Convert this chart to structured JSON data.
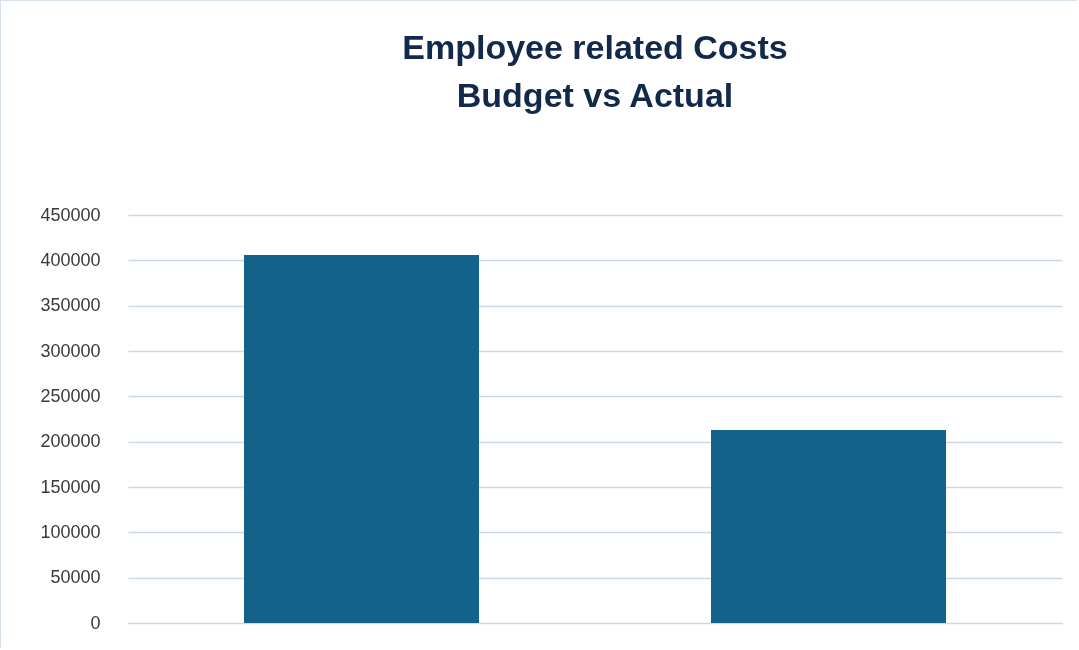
{
  "chart_data": {
    "type": "bar",
    "title": "Employee related Costs\nBudget vs Actual",
    "categories": [
      null,
      null
    ],
    "values": [
      406000,
      213000
    ],
    "color": "#13628a",
    "ylim": [
      0,
      450000
    ],
    "yticks": [
      0,
      50000,
      100000,
      150000,
      200000,
      250000,
      300000,
      350000,
      400000,
      450000
    ],
    "grid": "y",
    "tick_labels": "y"
  }
}
